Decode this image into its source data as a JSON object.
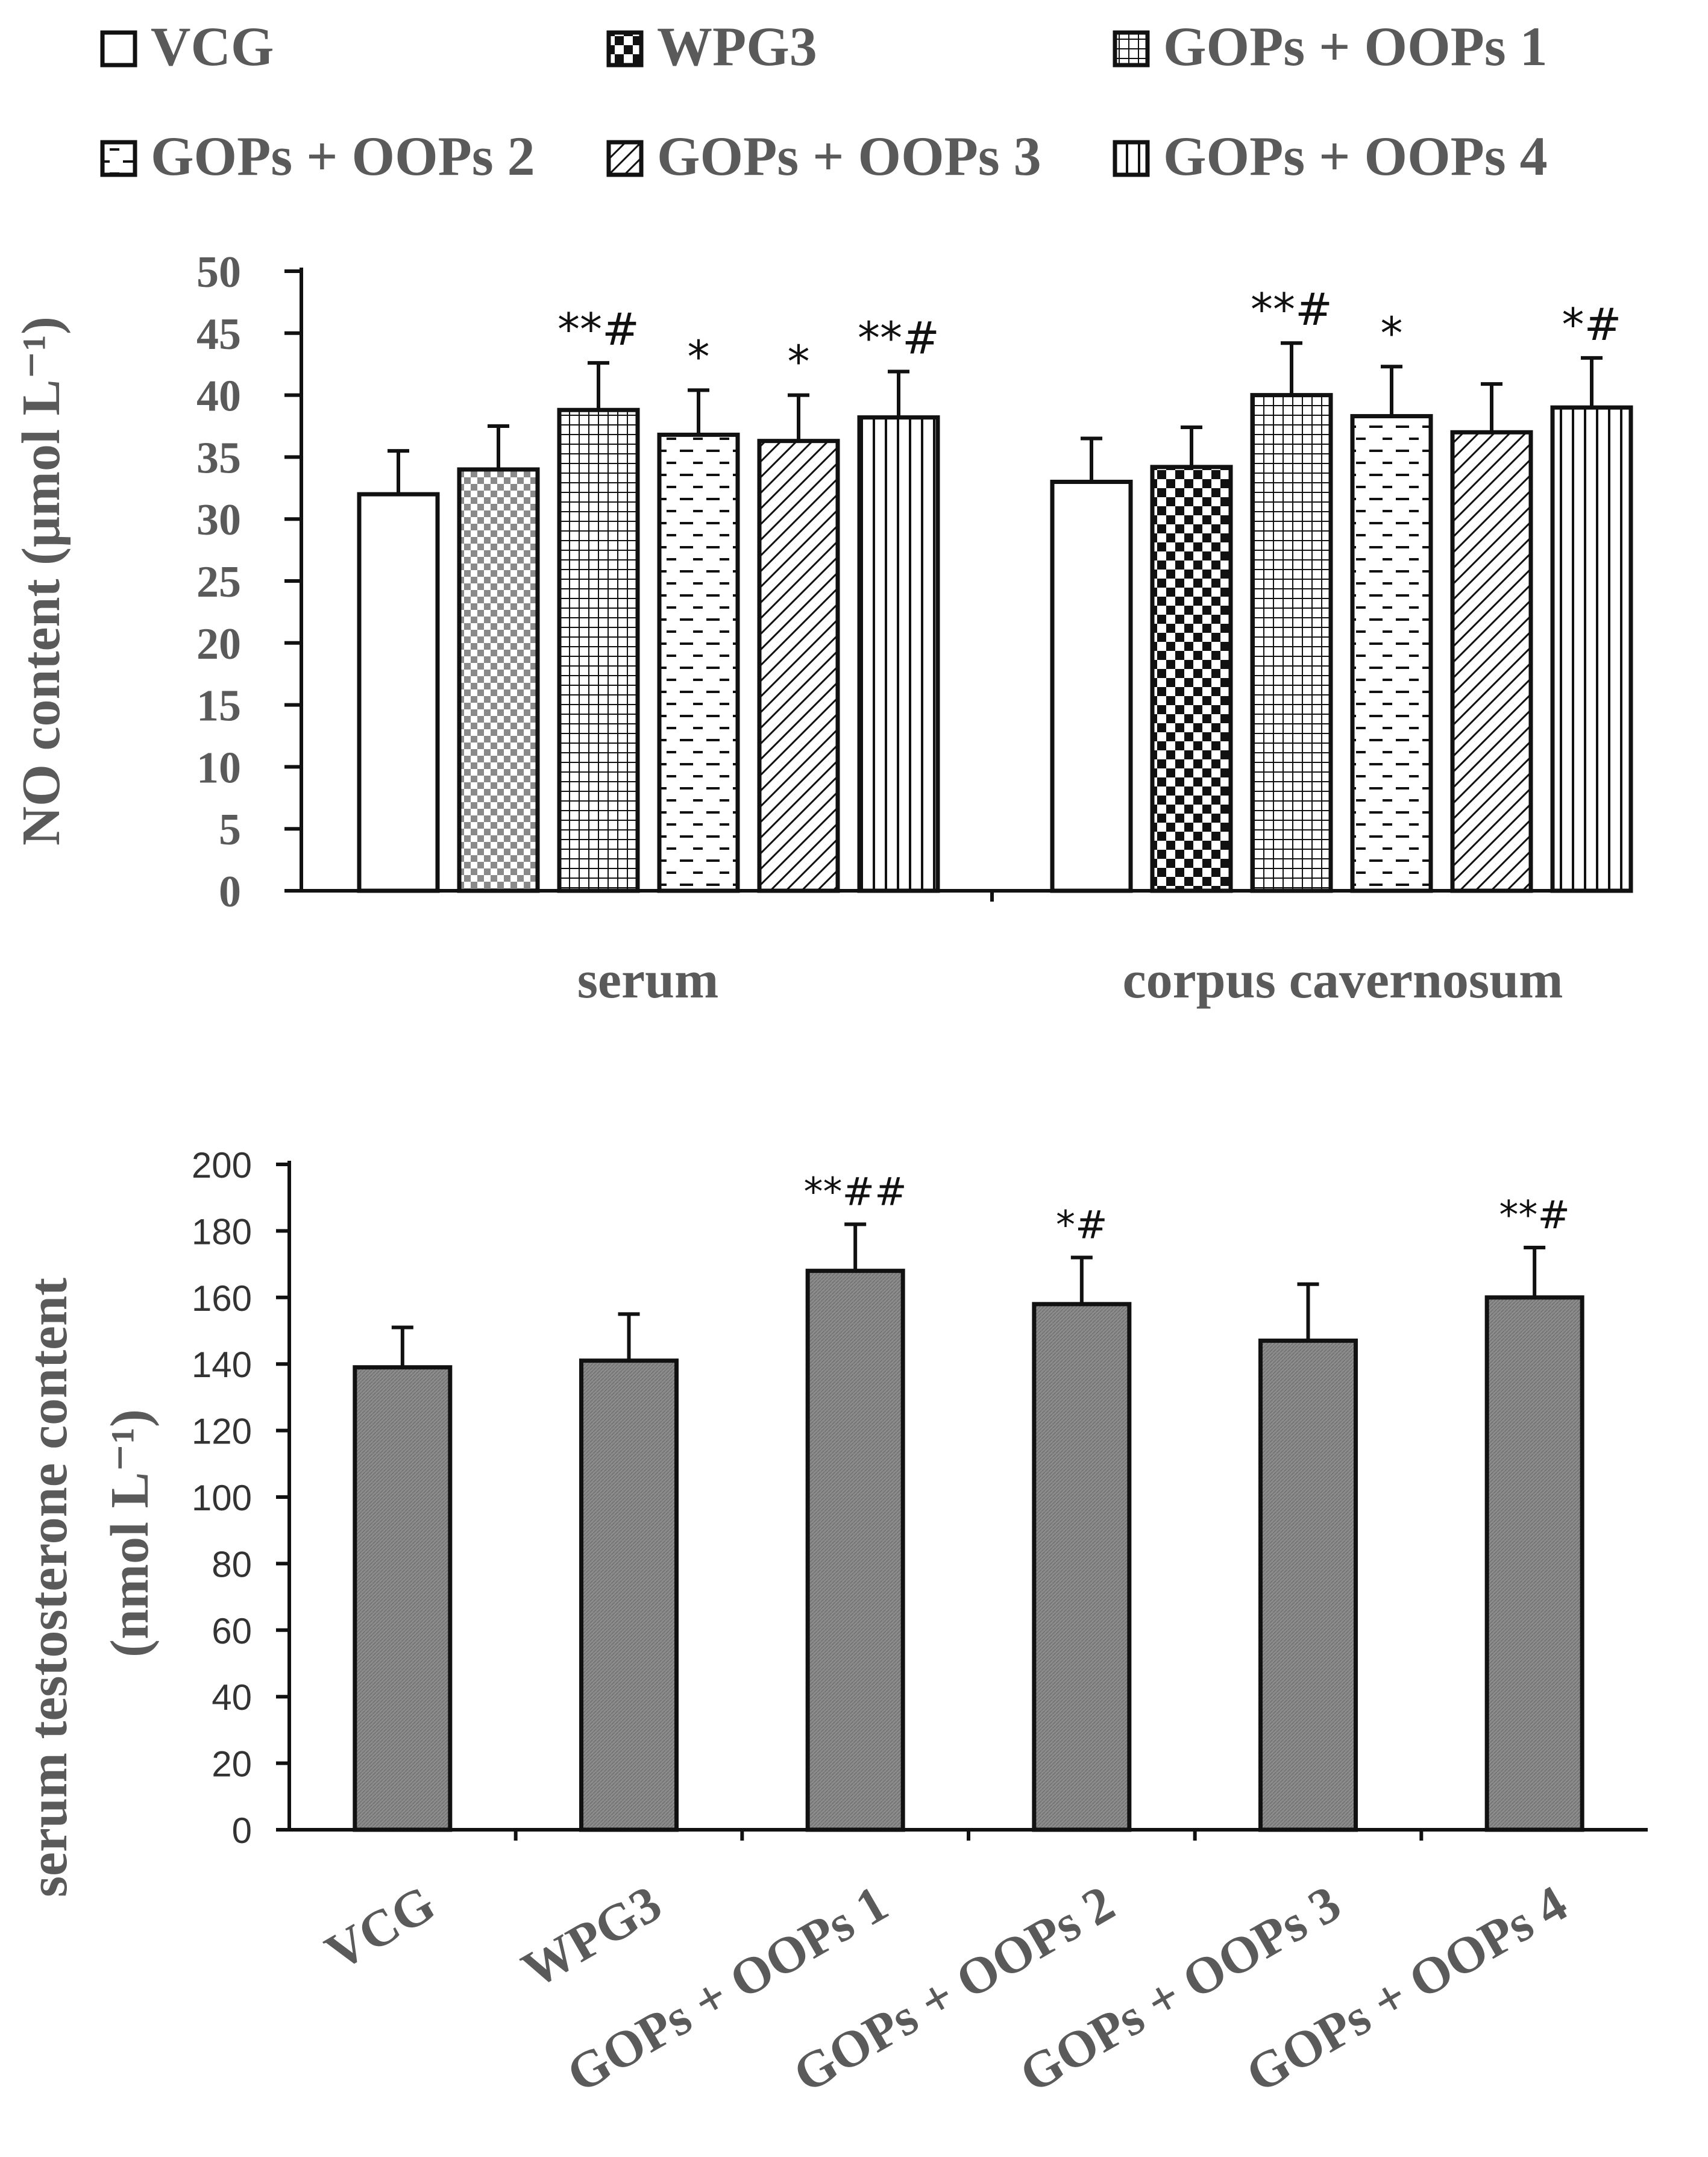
{
  "legend": {
    "items": [
      "VCG",
      "WPG3",
      "GOPs + OOPs 1",
      "GOPs + OOPs 2",
      "GOPs + OOPs 3",
      "GOPs + OOPs 4"
    ]
  },
  "chart_data": [
    {
      "type": "bar",
      "ylabel": "NO content (μmol L⁻¹)",
      "ylim": [
        0,
        50
      ],
      "yticks": [
        0,
        5,
        10,
        15,
        20,
        25,
        30,
        35,
        40,
        45,
        50
      ],
      "groups": [
        "serum",
        "corpus cavernosum"
      ],
      "series": [
        {
          "name": "VCG",
          "pattern": "white",
          "values": [
            32,
            33
          ],
          "errors": [
            3.5,
            3.5
          ],
          "annotations": [
            "",
            ""
          ]
        },
        {
          "name": "WPG3",
          "pattern": "checker",
          "values": [
            34,
            34.2
          ],
          "errors": [
            3.5,
            3.2
          ],
          "annotations": [
            "",
            ""
          ]
        },
        {
          "name": "GOPs + OOPs 1",
          "pattern": "grid",
          "values": [
            38.8,
            40
          ],
          "errors": [
            3.8,
            4.2
          ],
          "annotations": [
            "**#",
            "**#"
          ]
        },
        {
          "name": "GOPs + OOPs 2",
          "pattern": "dash",
          "values": [
            36.8,
            38.3
          ],
          "errors": [
            3.6,
            4.0
          ],
          "annotations": [
            "*",
            "*"
          ]
        },
        {
          "name": "GOPs + OOPs 3",
          "pattern": "diag",
          "values": [
            36.3,
            37
          ],
          "errors": [
            3.7,
            3.9
          ],
          "annotations": [
            "*",
            ""
          ]
        },
        {
          "name": "GOPs + OOPs 4",
          "pattern": "vert",
          "values": [
            38.2,
            39
          ],
          "errors": [
            3.7,
            4.0
          ],
          "annotations": [
            "**#",
            "*#"
          ]
        }
      ]
    },
    {
      "type": "bar",
      "ylabel_line1": "serum testosterone content",
      "ylabel_line2": "(nmol L⁻¹)",
      "ylim": [
        0,
        200
      ],
      "yticks": [
        0,
        20,
        40,
        60,
        80,
        100,
        120,
        140,
        160,
        180,
        200
      ],
      "categories": [
        "VCG",
        "WPG3",
        "GOPs + OOPs 1",
        "GOPs + OOPs 2",
        "GOPs + OOPs 3",
        "GOPs + OOPs 4"
      ],
      "values": [
        139,
        141,
        168,
        158,
        147,
        160
      ],
      "errors": [
        12,
        14,
        14,
        14,
        17,
        15
      ],
      "annotations": [
        "",
        "",
        "**##",
        "*#",
        "",
        "**#"
      ],
      "bar_color": "#888888"
    }
  ]
}
